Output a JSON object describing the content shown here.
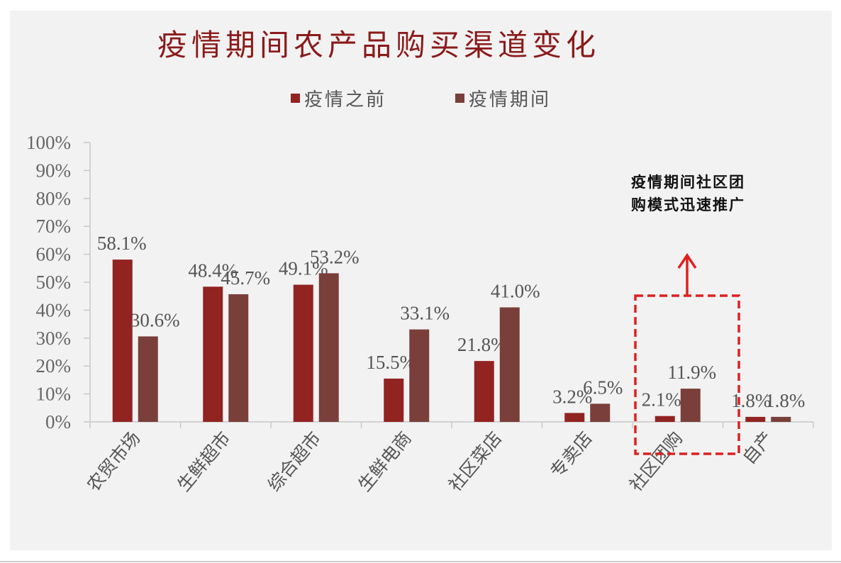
{
  "chart_data": {
    "type": "bar",
    "title": "疫情期间农产品购买渠道变化",
    "xlabel": "",
    "ylabel": "",
    "ylim": [
      0,
      100
    ],
    "yticks": [
      "0%",
      "10%",
      "20%",
      "30%",
      "40%",
      "50%",
      "60%",
      "70%",
      "80%",
      "90%",
      "100%"
    ],
    "categories": [
      "农贸市场",
      "生鲜超市",
      "综合超市",
      "生鲜电商",
      "社区菜店",
      "专卖店",
      "社区团购",
      "自产"
    ],
    "series": [
      {
        "name": "疫情之前",
        "color": "#912321",
        "values": [
          58.1,
          48.4,
          49.1,
          15.5,
          21.8,
          3.2,
          2.1,
          1.8
        ],
        "labels": [
          "58.1%",
          "48.4%",
          "49.1%",
          "15.5%",
          "21.8%",
          "3.2%",
          "2.1%",
          "1.8%"
        ]
      },
      {
        "name": "疫情期间",
        "color": "#7a3f3a",
        "values": [
          30.6,
          45.7,
          53.2,
          33.1,
          41.0,
          6.5,
          11.9,
          1.8
        ],
        "labels": [
          "30.6%",
          "45.7%",
          "53.2%",
          "33.1%",
          "41.0%",
          "6.5%",
          "11.9%",
          "1.8%"
        ]
      }
    ],
    "grid": false,
    "legend_position": "top",
    "annotation": {
      "text_line1": "疫情期间社区团",
      "text_line2": "购模式迅速推广",
      "highlight_category": "社区团购",
      "highlight_color": "#e02020"
    }
  },
  "title": "疫情期间农产品购买渠道变化",
  "legend": {
    "items": [
      {
        "label": "疫情之前",
        "color": "#912321"
      },
      {
        "label": "疫情期间",
        "color": "#7a3f3a"
      }
    ]
  },
  "annotation_text": "疫情期间社区团\n购模式迅速推广"
}
